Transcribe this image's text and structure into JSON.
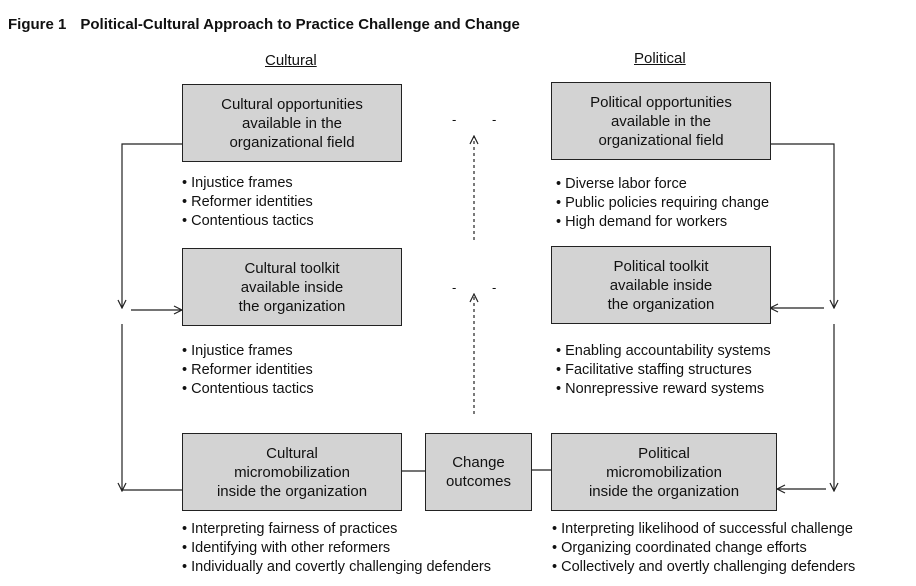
{
  "figure": {
    "number": "Figure 1",
    "title": "Political-Cultural Approach to Practice Challenge and Change"
  },
  "columns": {
    "cultural": "Cultural",
    "political": "Political"
  },
  "boxes": {
    "cultural_opportunities": [
      "Cultural opportunities",
      "available in the",
      "organizational field"
    ],
    "political_opportunities": [
      "Political opportunities",
      "available in the",
      "organizational field"
    ],
    "cultural_toolkit": [
      "Cultural toolkit",
      "available inside",
      "the organization"
    ],
    "political_toolkit": [
      "Political toolkit",
      "available inside",
      "the organization"
    ],
    "cultural_micro": [
      "Cultural",
      "micromobilization",
      "inside the organization"
    ],
    "change_outcomes": [
      "Change",
      "outcomes"
    ],
    "political_micro": [
      "Political",
      "micromobilization",
      "inside the organization"
    ]
  },
  "bullets": {
    "cultural_opportunities": [
      "Injustice frames",
      "Reformer identities",
      "Contentious tactics"
    ],
    "political_opportunities": [
      "Diverse labor force",
      "Public policies requiring change",
      "High demand for workers"
    ],
    "cultural_toolkit": [
      "Injustice frames",
      "Reformer identities",
      "Contentious tactics"
    ],
    "political_toolkit": [
      "Enabling accountability systems",
      "Facilitative staffing structures",
      "Nonrepressive reward systems"
    ],
    "cultural_micro": [
      "Interpreting fairness of practices",
      "Identifying with other reformers",
      "Individually and covertly challenging defenders"
    ],
    "political_micro": [
      "Interpreting likelihood of successful challenge",
      "Organizing coordinated  change efforts",
      "Collectively and overtly challenging defenders"
    ]
  },
  "ticks": {
    "upper": [
      "-",
      "-"
    ],
    "lower": [
      "-",
      "-"
    ]
  }
}
